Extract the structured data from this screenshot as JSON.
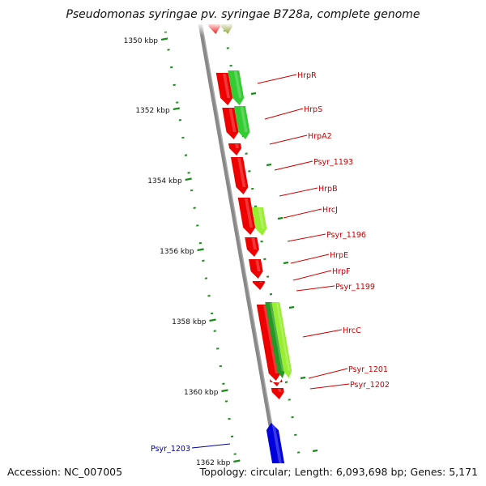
{
  "title": "Pseudomonas syringae pv. syringae B728a, complete genome",
  "footer": {
    "accession": "Accession: NC_007005",
    "info": "Topology: circular; Length: 6,093,698 bp; Genes: 5,171"
  },
  "colors": {
    "backbone": "#888888",
    "ticks": "#1a8a1a",
    "gene_red": "#ee0000",
    "gene_green": "#33cc33",
    "gene_lightgreen": "#99ee33",
    "gene_olive": "#8a9a22",
    "gene_blue": "#0000dd",
    "label_red": "#cc0000",
    "label_blue": "#000099"
  },
  "axis_ticks": [
    {
      "label": "1350 kbp"
    },
    {
      "label": "1352 kbp"
    },
    {
      "label": "1354 kbp"
    },
    {
      "label": "1356 kbp"
    },
    {
      "label": "1358 kbp"
    },
    {
      "label": "1360 kbp"
    },
    {
      "label": "1362 kbp"
    }
  ],
  "gene_labels": [
    {
      "name": "HrpR",
      "color": "red"
    },
    {
      "name": "HrpS",
      "color": "red"
    },
    {
      "name": "HrpA2",
      "color": "red"
    },
    {
      "name": "Psyr_1193",
      "color": "red"
    },
    {
      "name": "HrpB",
      "color": "red"
    },
    {
      "name": "HrcJ",
      "color": "red"
    },
    {
      "name": "Psyr_1196",
      "color": "red"
    },
    {
      "name": "HrpE",
      "color": "red"
    },
    {
      "name": "HrpF",
      "color": "red"
    },
    {
      "name": "Psyr_1199",
      "color": "red"
    },
    {
      "name": "HrcC",
      "color": "red"
    },
    {
      "name": "Psyr_1201",
      "color": "red"
    },
    {
      "name": "Psyr_1202",
      "color": "red"
    },
    {
      "name": "Psyr_1203",
      "color": "blue"
    }
  ]
}
